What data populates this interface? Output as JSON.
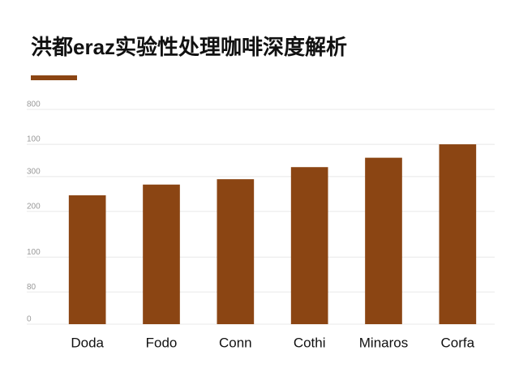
{
  "chart_data": {
    "type": "bar",
    "title": "洪都eraz实验性处理咖啡深度解析",
    "categories": [
      "Doda",
      "Fodo",
      "Conn",
      "Cothi",
      "Minaros",
      "Corfa"
    ],
    "values": [
      480,
      520,
      540,
      585,
      620,
      670
    ],
    "color": "#8b4513",
    "ylim": [
      0,
      800
    ],
    "yticks": [
      0,
      {
        "value": 120,
        "label": "80"
      },
      {
        "value": 250,
        "label": "100"
      },
      {
        "value": 420,
        "label": "200"
      },
      {
        "value": 550,
        "label": "300"
      },
      {
        "value": 670,
        "label": "100"
      },
      800
    ],
    "grid": true
  }
}
